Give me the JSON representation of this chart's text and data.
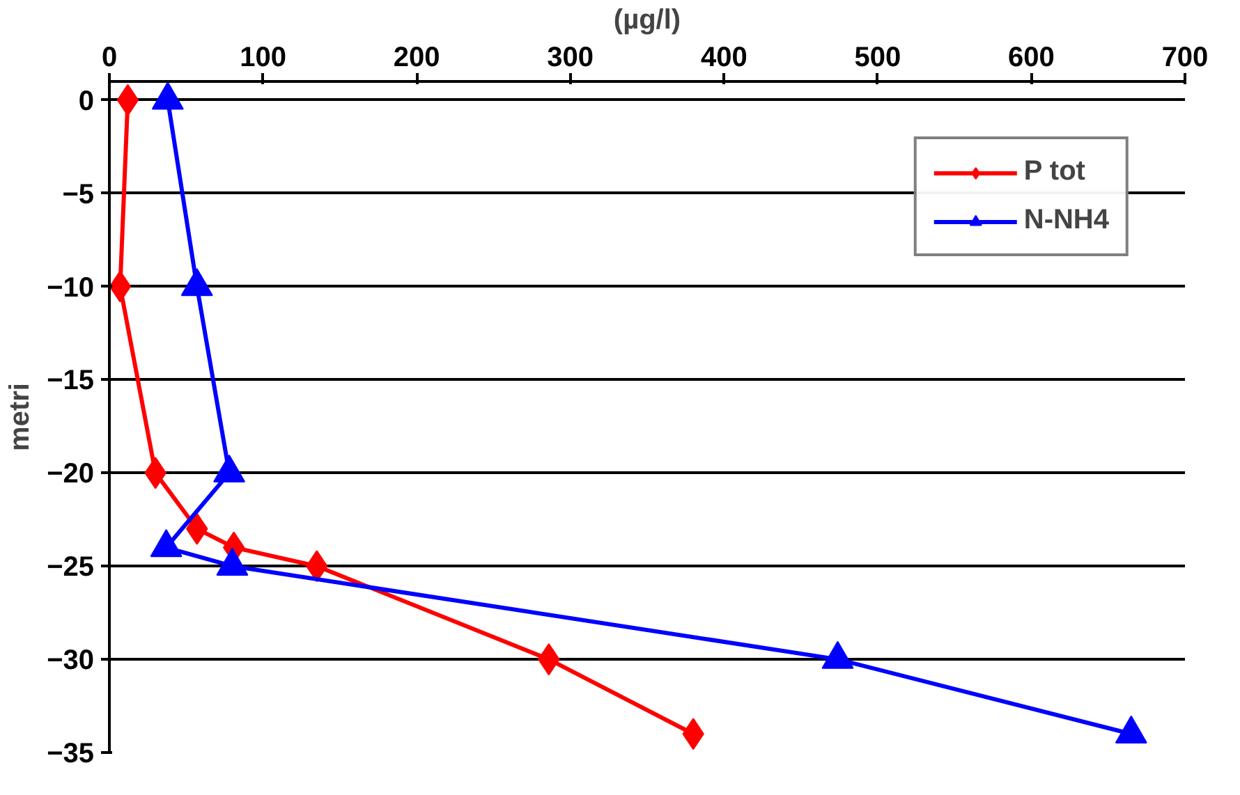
{
  "chart_data": {
    "type": "line",
    "xlabel": "(µg/l)",
    "ylabel": "metri",
    "xlim": [
      0,
      700
    ],
    "xticks": [
      0,
      100,
      200,
      300,
      400,
      500,
      600,
      700
    ],
    "ylim": [
      -35,
      1
    ],
    "yticks": [
      0,
      -5,
      -10,
      -15,
      -20,
      -25,
      -30,
      -35
    ],
    "grid": "y",
    "legend": "top right",
    "series": [
      {
        "name": "P tot",
        "color": "#ff0000",
        "marker": "diamond",
        "x": [
          12,
          7,
          30,
          57,
          81,
          135,
          286,
          380
        ],
        "values": [
          0,
          -10,
          -20,
          -23,
          -24,
          -25,
          -30,
          -34
        ]
      },
      {
        "name": "N-NH4",
        "color": "#0000ff",
        "marker": "triangle",
        "x": [
          38,
          57,
          78,
          37,
          80,
          474,
          665
        ],
        "values": [
          0,
          -10,
          -20,
          -24,
          -25,
          -30,
          -34
        ]
      }
    ]
  }
}
